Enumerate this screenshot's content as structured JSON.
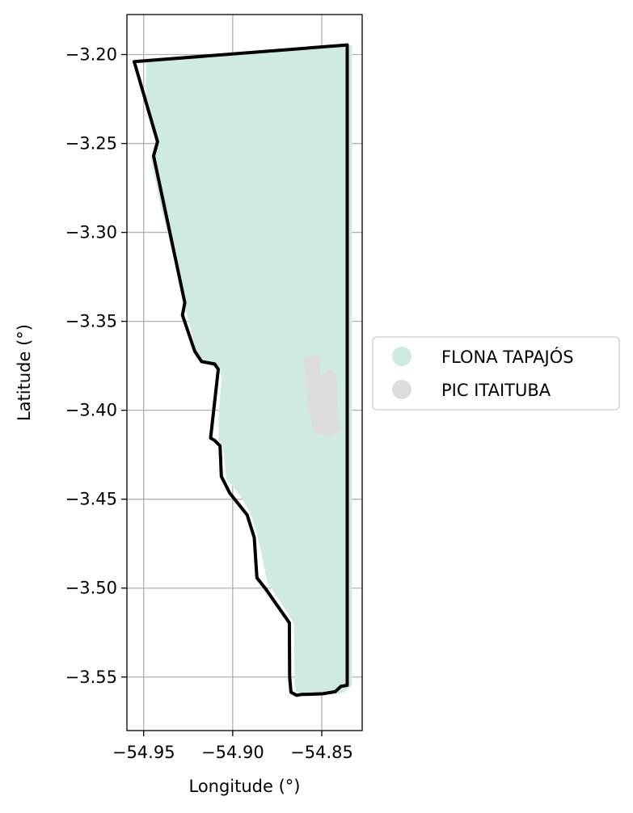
{
  "map": {
    "xlabel": "Longitude (°)",
    "ylabel": "Latitude (°)",
    "xlim": [
      -54.9594,
      -54.8273
    ],
    "ylim": [
      -3.5801,
      -3.1775
    ],
    "grid": true,
    "x_ticks": [
      {
        "value": -54.95,
        "label": "−54.95"
      },
      {
        "value": -54.9,
        "label": "−54.90"
      },
      {
        "value": -54.85,
        "label": "−54.85"
      }
    ],
    "y_ticks": [
      {
        "value": -3.2,
        "label": "−3.20"
      },
      {
        "value": -3.25,
        "label": "−3.25"
      },
      {
        "value": -3.3,
        "label": "−3.30"
      },
      {
        "value": -3.35,
        "label": "−3.35"
      },
      {
        "value": -3.4,
        "label": "−3.40"
      },
      {
        "value": -3.45,
        "label": "−3.45"
      },
      {
        "value": -3.5,
        "label": "−3.50"
      },
      {
        "value": -3.55,
        "label": "−3.55"
      }
    ],
    "legend_position": "outside-right",
    "layers": [
      {
        "name": "FLONA TAPAJÓS",
        "color": "#cfeadf",
        "outline_color": "#000000",
        "coords": [
          [
            -54.9488,
            -3.2035
          ],
          [
            -54.833,
            -3.1946
          ],
          [
            -54.833,
            -3.5546
          ],
          [
            -54.8377,
            -3.5587
          ],
          [
            -54.844,
            -3.56
          ],
          [
            -54.8493,
            -3.5591
          ],
          [
            -54.852,
            -3.559
          ],
          [
            -54.86,
            -3.559
          ],
          [
            -54.8643,
            -3.5585
          ],
          [
            -54.8652,
            -3.553
          ],
          [
            -54.8656,
            -3.52
          ],
          [
            -54.8684,
            -3.515
          ],
          [
            -54.8806,
            -3.4968
          ],
          [
            -54.8837,
            -3.4816
          ],
          [
            -54.886,
            -3.471
          ],
          [
            -54.8897,
            -3.4588
          ],
          [
            -54.8955,
            -3.4485
          ],
          [
            -54.9005,
            -3.442
          ],
          [
            -54.9035,
            -3.4392
          ],
          [
            -54.9055,
            -3.42
          ],
          [
            -54.908,
            -3.417
          ],
          [
            -54.9077,
            -3.4
          ],
          [
            -54.9063,
            -3.383
          ],
          [
            -54.9071,
            -3.3772
          ],
          [
            -54.9172,
            -3.3728
          ],
          [
            -54.9205,
            -3.367
          ],
          [
            -54.926,
            -3.345
          ],
          [
            -54.9265,
            -3.3399
          ],
          [
            -54.9342,
            -3.31
          ],
          [
            -54.9405,
            -3.285
          ],
          [
            -54.9459,
            -3.2583
          ],
          [
            -54.9433,
            -3.2487
          ],
          [
            -54.9488,
            -3.23
          ]
        ],
        "outline": [
          [
            -54.9553,
            -3.204
          ],
          [
            -54.8357,
            -3.1946
          ],
          [
            -54.8357,
            -3.5546
          ],
          [
            -54.8393,
            -3.5553
          ],
          [
            -54.8424,
            -3.5582
          ],
          [
            -54.8492,
            -3.5594
          ],
          [
            -54.8542,
            -3.5596
          ],
          [
            -54.8615,
            -3.5598
          ],
          [
            -54.8641,
            -3.5603
          ],
          [
            -54.8673,
            -3.5585
          ],
          [
            -54.868,
            -3.55
          ],
          [
            -54.8682,
            -3.5195
          ],
          [
            -54.8818,
            -3.5
          ],
          [
            -54.8864,
            -3.4942
          ],
          [
            -54.8879,
            -3.4716
          ],
          [
            -54.8919,
            -3.4588
          ],
          [
            -54.9017,
            -3.4465
          ],
          [
            -54.9064,
            -3.4372
          ],
          [
            -54.9071,
            -3.42
          ],
          [
            -54.9103,
            -3.4169
          ],
          [
            -54.9124,
            -3.4156
          ],
          [
            -54.9081,
            -3.377
          ],
          [
            -54.9101,
            -3.374
          ],
          [
            -54.9175,
            -3.3726
          ],
          [
            -54.9213,
            -3.3668
          ],
          [
            -54.9282,
            -3.3465
          ],
          [
            -54.9269,
            -3.3395
          ],
          [
            -54.9444,
            -3.257
          ],
          [
            -54.9422,
            -3.249
          ],
          [
            -54.9553,
            -3.204
          ]
        ]
      },
      {
        "name": "PIC ITAITUBA",
        "color": "#dcdcdc",
        "coords": [
          [
            -54.8604,
            -3.371
          ],
          [
            -54.8514,
            -3.3685
          ],
          [
            -54.8508,
            -3.38
          ],
          [
            -54.8434,
            -3.377
          ],
          [
            -54.8415,
            -3.3838
          ],
          [
            -54.8407,
            -3.409
          ],
          [
            -54.8377,
            -3.41
          ],
          [
            -54.8454,
            -3.415
          ],
          [
            -54.8548,
            -3.4125
          ],
          [
            -54.858,
            -3.393
          ]
        ]
      }
    ]
  }
}
